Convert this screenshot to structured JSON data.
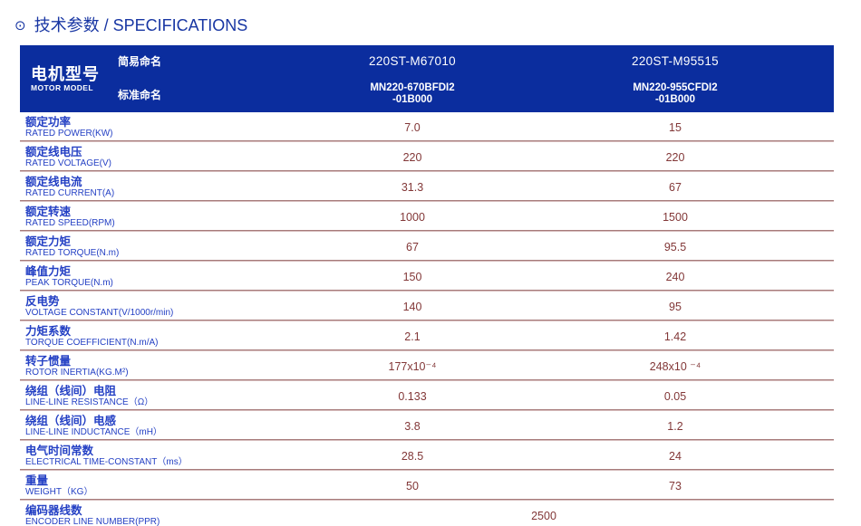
{
  "page": {
    "title_icon": "⊙",
    "title": "技术参数 / SPECIFICATIONS"
  },
  "colors": {
    "header_bg": "#0b2d9e",
    "title_blue": "#1836a3",
    "label_blue": "#2440c4",
    "value_maroon": "#823737"
  },
  "table": {
    "header": {
      "motor_model_zh": "电机型号",
      "motor_model_en": "MOTOR MODEL",
      "simple_name_label": "简易命名",
      "standard_name_label": "标准命名",
      "columns": [
        {
          "simple_name": "220ST-M67010",
          "standard_name_line1": "MN220-670BFDI2",
          "standard_name_line2": "-01B000"
        },
        {
          "simple_name": "220ST-M95515",
          "standard_name_line1": "MN220-955CFDI2",
          "standard_name_line2": "-01B000"
        }
      ]
    },
    "rows": [
      {
        "zh": "额定功率",
        "en": "RATED POWER(KW)",
        "v1": "7.0",
        "v2": "15"
      },
      {
        "zh": "额定线电压",
        "en": "RATED VOLTAGE(V)",
        "v1": "220",
        "v2": "220"
      },
      {
        "zh": "额定线电流",
        "en": "RATED CURRENT(A)",
        "v1": "31.3",
        "v2": "67"
      },
      {
        "zh": "额定转速",
        "en": "RATED SPEED(RPM)",
        "v1": "1000",
        "v2": "1500"
      },
      {
        "zh": "额定力矩",
        "en": "RATED TORQUE(N.m)",
        "v1": "67",
        "v2": "95.5"
      },
      {
        "zh": "峰值力矩",
        "en": "PEAK TORQUE(N.m)",
        "v1": "150",
        "v2": "240"
      },
      {
        "zh": "反电势",
        "en": "VOLTAGE CONSTANT(V/1000r/min)",
        "v1": "140",
        "v2": "95"
      },
      {
        "zh": "力矩系数",
        "en": "TORQUE COEFFICIENT(N.m/A)",
        "v1": "2.1",
        "v2": "1.42"
      },
      {
        "zh": "转子惯量",
        "en": "ROTOR INERTIA(KG.M²)",
        "v1": "177x10⁻⁴",
        "v2": "248x10 ⁻⁴"
      },
      {
        "zh": "绕组（线间）电阻",
        "en": "LINE-LINE RESISTANCE（Ω）",
        "v1": "0.133",
        "v2": "0.05"
      },
      {
        "zh": "绕组（线间）电感",
        "en": "LINE-LINE INDUCTANCE（mH）",
        "v1": "3.8",
        "v2": "1.2"
      },
      {
        "zh": "电气时间常数",
        "en": "ELECTRICAL TIME-CONSTANT（ms）",
        "v1": "28.5",
        "v2": "24"
      },
      {
        "zh": "重量",
        "en": "WEIGHT（KG）",
        "v1": "50",
        "v2": "73"
      },
      {
        "zh": "编码器线数",
        "en": "ENCODER LINE NUMBER(PPR)",
        "span": "2500"
      }
    ]
  }
}
